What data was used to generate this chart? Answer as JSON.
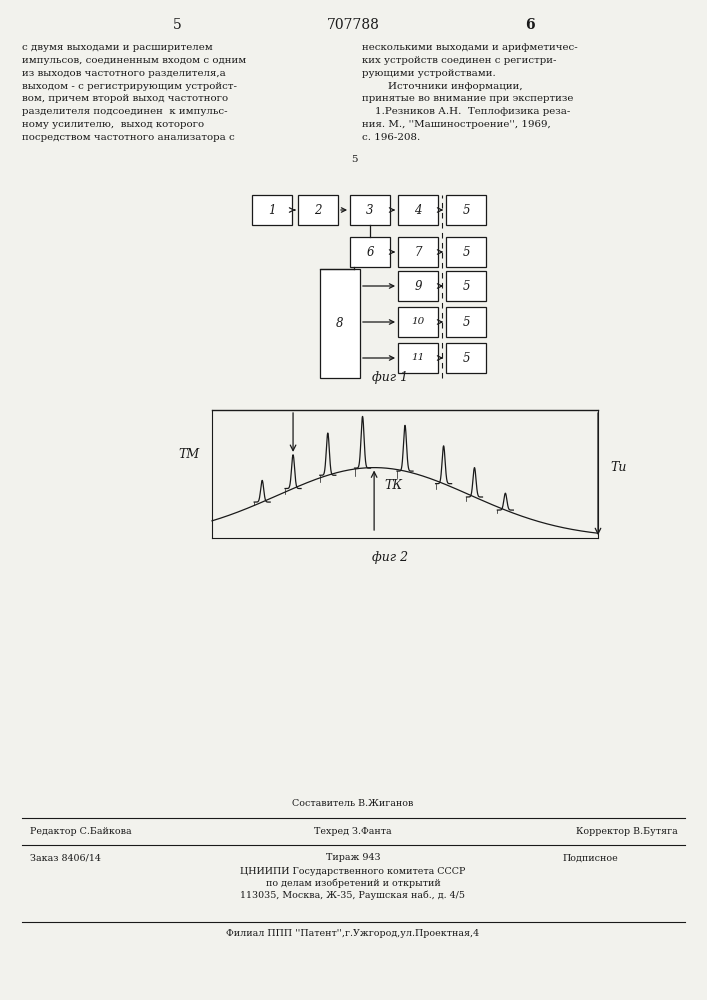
{
  "page_number_left": "5",
  "page_number_right": "6",
  "patent_number": "707788",
  "text_left": "с двумя выходами и расширителем\nимпульсов, соединенным входом с одним\nиз выходов частотного разделителя,а\nвыходом - с регистрирующим устройст-\nвом, причем второй выход частотного\nразделителя подсоединен  к импульс-\nному усилителю,  выход которого\nпосредством частотного анализатора с",
  "text_right": "несколькими выходами и арифметичес-\nких устройств соединен с регистри-\nрующими устройствами.\n        Источники информации,\nпринятые во внимание при экспертизе\n    1.Резников А.Н.  Теплофизика реза-\nния. М., ''Машиностроение'', 1969,\nс. 196-208.",
  "col_sep_label": "5",
  "fig1_label": "фиг 1",
  "fig2_label": "фиг 2",
  "tm_label": "TМ",
  "tk_label": "TК",
  "tu_label": "Tи",
  "footer_line1_center": "Составитель В.Жиганов",
  "footer_line1_left": "Редактор С.Байкова",
  "footer_line1_mid": "Техред З.Фанта",
  "footer_line1_right": "Корректор В.Бутяга",
  "footer_line2_left": "Заказ 8406/14",
  "footer_line2_mid": "Тираж 943",
  "footer_line2_right": "Подписное",
  "footer_line3": "ЦНИИПИ Государственного комитета СССР",
  "footer_line4": "по делам изобретений и открытий",
  "footer_line5": "113035, Москва, Ж-35, Раушская наб., д. 4/5",
  "footer_line6": "Филиал ППП ''Патент'',г.Ужгород,ул.Проектная,4",
  "bg_color": "#f2f2ed",
  "text_color": "#1a1a1a",
  "box_color": "#1a1a1a"
}
